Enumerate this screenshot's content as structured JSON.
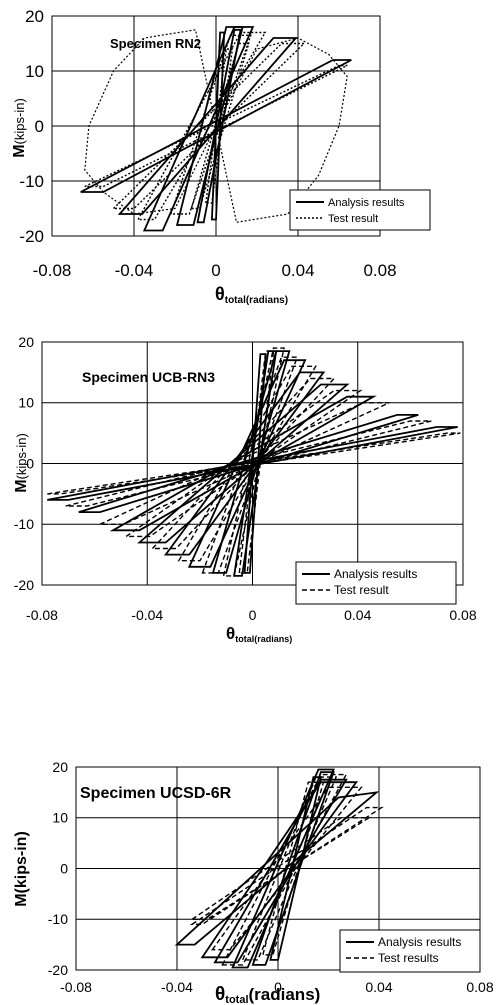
{
  "chart_data": [
    {
      "type": "line",
      "title": "Specimen RN2",
      "ylabel_main": "M",
      "ylabel_sub": "(kips-in)",
      "xlabel_main": "θ",
      "xlabel_sub": "total(radians)",
      "xlim": [
        -0.08,
        0.08
      ],
      "ylim": [
        -20,
        20
      ],
      "xticks": [
        "-0.08",
        "-0.04",
        "0",
        "0.04",
        "0.08"
      ],
      "yticks": [
        "20",
        "10",
        "0",
        "-10",
        "-20"
      ],
      "legend_position": "bottom-right",
      "series": [
        {
          "name": "Analysis results",
          "style": "solid",
          "loops": [
            [
              [
                -0.002,
                -17
              ],
              [
                0.002,
                17
              ],
              [
                0.004,
                17
              ],
              [
                0.0,
                -17
              ]
            ],
            [
              [
                -0.009,
                -17.5
              ],
              [
                0.009,
                17.5
              ],
              [
                0.012,
                17.5
              ],
              [
                -0.006,
                -17.5
              ]
            ],
            [
              [
                -0.019,
                -18
              ],
              [
                0.005,
                18
              ],
              [
                0.013,
                18
              ],
              [
                -0.011,
                -18
              ]
            ],
            [
              [
                -0.035,
                -19
              ],
              [
                0.009,
                18
              ],
              [
                0.018,
                18
              ],
              [
                -0.026,
                -19
              ]
            ],
            [
              [
                -0.047,
                -16
              ],
              [
                0.028,
                16
              ],
              [
                0.039,
                16
              ],
              [
                -0.036,
                -16
              ]
            ],
            [
              [
                -0.066,
                -12
              ],
              [
                0.057,
                12
              ],
              [
                0.066,
                12
              ],
              [
                -0.055,
                -12
              ]
            ]
          ]
        },
        {
          "name": "Test result",
          "style": "dotted",
          "loops": [
            [
              [
                -0.005,
                -14
              ],
              [
                0.005,
                14
              ],
              [
                0.008,
                14
              ],
              [
                -0.002,
                -14
              ]
            ],
            [
              [
                -0.012,
                -15
              ],
              [
                0.011,
                15
              ],
              [
                0.016,
                15
              ],
              [
                -0.008,
                -15
              ]
            ],
            [
              [
                -0.022,
                -16
              ],
              [
                0.007,
                16.5
              ],
              [
                0.017,
                16.5
              ],
              [
                -0.013,
                -16
              ]
            ],
            [
              [
                -0.038,
                -17
              ],
              [
                0.012,
                17
              ],
              [
                0.024,
                17
              ],
              [
                -0.03,
                -17
              ]
            ],
            [
              [
                -0.05,
                -15
              ],
              [
                0.032,
                15
              ],
              [
                0.043,
                15
              ],
              [
                -0.04,
                -15
              ]
            ],
            [
              [
                -0.064,
                -11
              ],
              [
                0.06,
                11
              ],
              [
                0.064,
                11
              ],
              [
                -0.055,
                -11
              ]
            ]
          ],
          "envelope": [
            [
              0.0,
              0.0
            ],
            [
              0.02,
              14
            ],
            [
              0.04,
              16
            ],
            [
              0.055,
              13
            ],
            [
              0.064,
              9
            ],
            [
              0.06,
              0
            ],
            [
              0.05,
              -9
            ],
            [
              0.035,
              -16
            ],
            [
              0.01,
              -17.5
            ],
            [
              0.0,
              0.0
            ],
            [
              -0.02,
              -15
            ],
            [
              -0.04,
              -16
            ],
            [
              -0.055,
              -12
            ],
            [
              -0.064,
              -8
            ],
            [
              -0.062,
              0
            ],
            [
              -0.05,
              10
            ],
            [
              -0.035,
              16
            ],
            [
              -0.01,
              17.5
            ],
            [
              0.0,
              0.0
            ]
          ]
        }
      ],
      "legend": [
        {
          "label": "Analysis results",
          "style": "solid"
        },
        {
          "label": "Test result",
          "style": "dotted"
        }
      ]
    },
    {
      "type": "line",
      "title": "Specimen UCB-RN3",
      "ylabel_main": "M",
      "ylabel_sub": "(kips-in)",
      "xlabel_main": "θ",
      "xlabel_sub": "total(radians)",
      "xlim": [
        -0.08,
        0.08
      ],
      "ylim": [
        -20,
        20
      ],
      "xticks": [
        "-0.08",
        "-0.04",
        "0",
        "0.04",
        "0.08"
      ],
      "yticks": [
        "20",
        "10",
        "0",
        "-10",
        "-20"
      ],
      "legend_position": "bottom-right",
      "series": [
        {
          "name": "Analysis results",
          "style": "solid",
          "loops": [
            [
              [
                -0.003,
                -18
              ],
              [
                0.003,
                18
              ],
              [
                0.005,
                18
              ],
              [
                -0.001,
                -18
              ]
            ],
            [
              [
                -0.007,
                -18.5
              ],
              [
                0.006,
                18.5
              ],
              [
                0.009,
                18.5
              ],
              [
                -0.004,
                -18.5
              ]
            ],
            [
              [
                -0.015,
                -18
              ],
              [
                0.009,
                18.5
              ],
              [
                0.014,
                18.5
              ],
              [
                -0.01,
                -18
              ]
            ],
            [
              [
                -0.024,
                -17
              ],
              [
                0.012,
                17
              ],
              [
                0.02,
                17
              ],
              [
                -0.016,
                -17
              ]
            ],
            [
              [
                -0.033,
                -15
              ],
              [
                0.018,
                15
              ],
              [
                0.027,
                15
              ],
              [
                -0.024,
                -15
              ]
            ],
            [
              [
                -0.043,
                -13
              ],
              [
                0.026,
                13
              ],
              [
                0.036,
                13
              ],
              [
                -0.033,
                -13
              ]
            ],
            [
              [
                -0.053,
                -11
              ],
              [
                0.036,
                11
              ],
              [
                0.046,
                11
              ],
              [
                -0.043,
                -11
              ]
            ],
            [
              [
                -0.066,
                -8
              ],
              [
                0.055,
                8
              ],
              [
                0.063,
                8
              ],
              [
                -0.058,
                -8
              ]
            ],
            [
              [
                -0.078,
                -6
              ],
              [
                0.07,
                6
              ],
              [
                0.078,
                6
              ],
              [
                -0.07,
                -6
              ]
            ]
          ]
        },
        {
          "name": "Test result",
          "style": "dashed",
          "loops": [
            [
              [
                -0.005,
                -18
              ],
              [
                0.005,
                18.5
              ],
              [
                0.008,
                18.5
              ],
              [
                -0.002,
                -18
              ]
            ],
            [
              [
                -0.011,
                -18.5
              ],
              [
                0.008,
                19
              ],
              [
                0.012,
                19
              ],
              [
                -0.007,
                -18.5
              ]
            ],
            [
              [
                -0.019,
                -18
              ],
              [
                0.011,
                17.5
              ],
              [
                0.017,
                17.5
              ],
              [
                -0.013,
                -18
              ]
            ],
            [
              [
                -0.028,
                -16
              ],
              [
                0.015,
                16
              ],
              [
                0.024,
                16
              ],
              [
                -0.02,
                -16
              ]
            ],
            [
              [
                -0.038,
                -14
              ],
              [
                0.022,
                14
              ],
              [
                0.031,
                14
              ],
              [
                -0.029,
                -14
              ]
            ],
            [
              [
                -0.048,
                -12
              ],
              [
                0.031,
                12
              ],
              [
                0.041,
                12
              ],
              [
                -0.039,
                -12
              ]
            ],
            [
              [
                -0.058,
                -10
              ],
              [
                0.042,
                10
              ],
              [
                0.052,
                10
              ],
              [
                -0.049,
                -10
              ]
            ],
            [
              [
                -0.071,
                -7
              ],
              [
                0.06,
                7
              ],
              [
                0.068,
                7
              ],
              [
                -0.063,
                -7
              ]
            ],
            [
              [
                -0.078,
                -5
              ],
              [
                0.074,
                5
              ],
              [
                0.079,
                5
              ],
              [
                -0.073,
                -5
              ]
            ]
          ]
        }
      ],
      "legend": [
        {
          "label": "Analysis results",
          "style": "solid"
        },
        {
          "label": "Test result",
          "style": "dashed"
        }
      ]
    },
    {
      "type": "line",
      "title": "Specimen UCSD-6R",
      "ylabel_main": "M(kips-in)",
      "ylabel_sub": "",
      "xlabel_main": "θ",
      "xlabel_sub": "total",
      "xlabel_suffix": "(radians)",
      "xlim": [
        -0.08,
        0.08
      ],
      "ylim": [
        -20,
        20
      ],
      "xticks": [
        "-0.08",
        "-0.04",
        "0",
        "0.04",
        "0.08"
      ],
      "yticks": [
        "20",
        "10",
        "0",
        "-10",
        "-20"
      ],
      "legend_position": "bottom-right",
      "series": [
        {
          "name": "Analysis results",
          "style": "solid",
          "loops": [
            [
              [
                -0.003,
                -18
              ],
              [
                0.014,
                18
              ],
              [
                0.017,
                18
              ],
              [
                0.0,
                -18
              ]
            ],
            [
              [
                -0.01,
                -19
              ],
              [
                0.017,
                19
              ],
              [
                0.022,
                19
              ],
              [
                -0.005,
                -19
              ]
            ],
            [
              [
                -0.018,
                -19.5
              ],
              [
                0.016,
                19.5
              ],
              [
                0.022,
                19.5
              ],
              [
                -0.012,
                -19.5
              ]
            ],
            [
              [
                -0.025,
                -18.5
              ],
              [
                0.017,
                17.5
              ],
              [
                0.027,
                17.5
              ],
              [
                -0.016,
                -18.5
              ]
            ],
            [
              [
                -0.03,
                -17.5
              ],
              [
                0.017,
                17
              ],
              [
                0.031,
                17
              ],
              [
                -0.02,
                -17.5
              ]
            ],
            [
              [
                -0.04,
                -15
              ],
              [
                0.024,
                14
              ],
              [
                0.039,
                15
              ],
              [
                -0.033,
                -15
              ]
            ]
          ]
        },
        {
          "name": "Test results",
          "style": "dashed",
          "loops": [
            [
              [
                -0.006,
                -17
              ],
              [
                0.012,
                17
              ],
              [
                0.018,
                17
              ],
              [
                -0.002,
                -17
              ]
            ],
            [
              [
                -0.014,
                -18
              ],
              [
                0.015,
                18
              ],
              [
                0.023,
                18
              ],
              [
                -0.008,
                -18
              ]
            ],
            [
              [
                -0.022,
                -19
              ],
              [
                0.017,
                18.5
              ],
              [
                0.027,
                18.5
              ],
              [
                -0.014,
                -19
              ]
            ],
            [
              [
                -0.026,
                -16
              ],
              [
                0.02,
                16
              ],
              [
                0.033,
                16
              ],
              [
                -0.019,
                -16
              ]
            ],
            [
              [
                -0.034,
                -10
              ],
              [
                0.025,
                10
              ],
              [
                0.036,
                10
              ],
              [
                -0.028,
                -10
              ]
            ],
            [
              [
                -0.034,
                -11
              ],
              [
                0.035,
                12
              ],
              [
                0.041,
                12
              ],
              [
                -0.03,
                -11
              ]
            ]
          ]
        }
      ],
      "legend": [
        {
          "label": "Analysis results",
          "style": "solid"
        },
        {
          "label": "Test results",
          "style": "dashed"
        }
      ]
    }
  ]
}
